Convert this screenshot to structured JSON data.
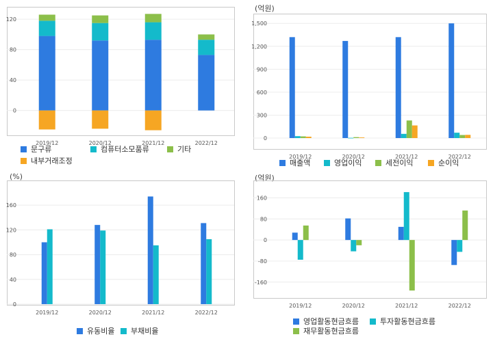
{
  "chart_data": [
    {
      "id": "chart1",
      "type": "bar",
      "stacked": true,
      "title": "",
      "unit_label": "",
      "categories": [
        "2019/12",
        "2020/12",
        "2021/12",
        "2022/12"
      ],
      "ylim": [
        -30,
        130
      ],
      "yticks": [
        0,
        40,
        80,
        120
      ],
      "series": [
        {
          "name": "문구류",
          "color": "#2E7BE0",
          "values": [
            98,
            92,
            93,
            73
          ]
        },
        {
          "name": "컴퓨터소모품류",
          "color": "#14BACB",
          "values": [
            20,
            23,
            23,
            20
          ]
        },
        {
          "name": "기타",
          "color": "#8CBF4A",
          "values": [
            8,
            10,
            11,
            7
          ]
        },
        {
          "name": "내부거래조정",
          "color": "#F6A623",
          "values": [
            -25,
            -24,
            -26,
            0
          ]
        }
      ]
    },
    {
      "id": "chart2",
      "type": "bar",
      "title": "",
      "unit_label": "(억원)",
      "categories": [
        "2019/12",
        "2020/12",
        "2021/12",
        "2022/12"
      ],
      "ylim": [
        0,
        1600
      ],
      "yticks": [
        0,
        300,
        600,
        900,
        1200,
        1500
      ],
      "ytick_labels": [
        "0",
        "300",
        "600",
        "900",
        "1,200",
        "1,500"
      ],
      "series": [
        {
          "name": "매출액",
          "color": "#2E7BE0",
          "values": [
            1320,
            1270,
            1320,
            1500
          ]
        },
        {
          "name": "영업이익",
          "color": "#14BACB",
          "values": [
            25,
            3,
            55,
            70
          ]
        },
        {
          "name": "세전이익",
          "color": "#8CBF4A",
          "values": [
            22,
            12,
            230,
            40
          ]
        },
        {
          "name": "순이익",
          "color": "#F6A623",
          "values": [
            18,
            8,
            165,
            42
          ]
        }
      ]
    },
    {
      "id": "chart3",
      "type": "bar",
      "title": "",
      "unit_label": "(%)",
      "categories": [
        "2019/12",
        "2020/12",
        "2021/12",
        "2022/12"
      ],
      "ylim": [
        0,
        190
      ],
      "yticks": [
        0,
        40,
        80,
        120,
        160
      ],
      "series": [
        {
          "name": "유동비율",
          "color": "#2E7BE0",
          "values": [
            100,
            128,
            174,
            131
          ]
        },
        {
          "name": "부채비율",
          "color": "#14BACB",
          "values": [
            121,
            119,
            95,
            105
          ]
        }
      ]
    },
    {
      "id": "chart4",
      "type": "bar",
      "title": "",
      "unit_label": "(억원)",
      "categories": [
        "2019/12",
        "2020/12",
        "2021/12",
        "2022/12"
      ],
      "ylim": [
        -210,
        190
      ],
      "yticks": [
        -160,
        -80,
        0,
        80,
        160
      ],
      "series": [
        {
          "name": "영업활동현금흐름",
          "color": "#2E7BE0",
          "values": [
            28,
            82,
            50,
            -95
          ]
        },
        {
          "name": "투자활동현금흐름",
          "color": "#14BACB",
          "values": [
            -75,
            -43,
            182,
            -45
          ]
        },
        {
          "name": "재무활동현금흐름",
          "color": "#8CBF4A",
          "values": [
            55,
            -20,
            -192,
            112
          ]
        }
      ]
    }
  ]
}
